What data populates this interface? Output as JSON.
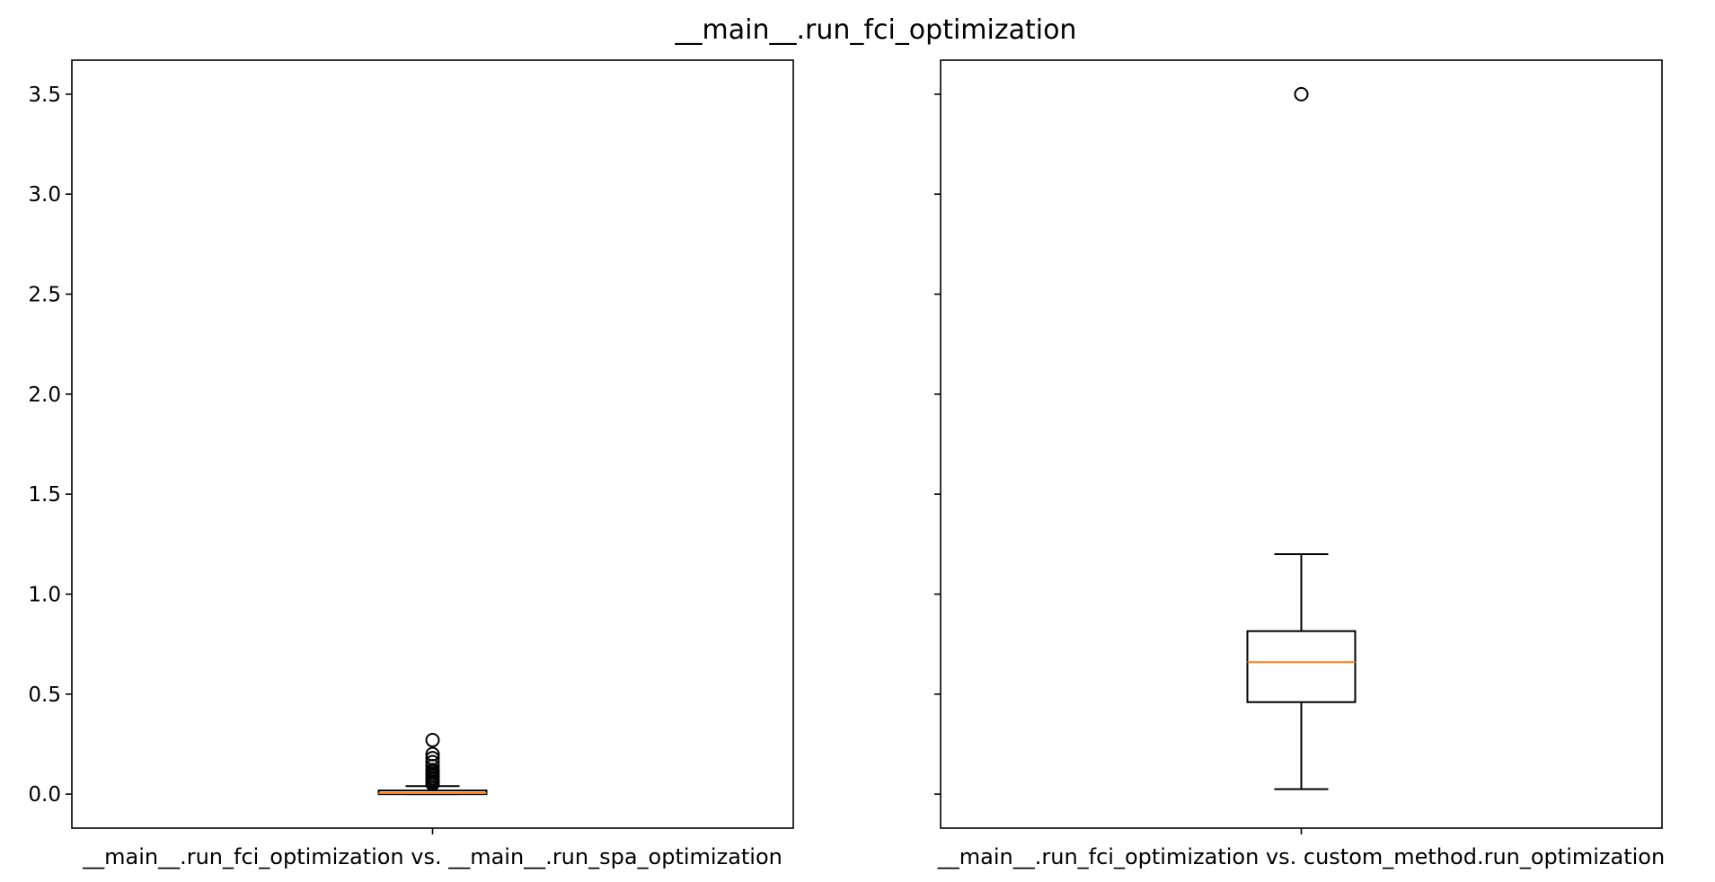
{
  "figure": {
    "title": "__main__.run_fci_optimization"
  },
  "colors": {
    "box": "#000000",
    "median": "#ff7f0e",
    "background": "#ffffff"
  },
  "chart_data": {
    "type": "boxplot",
    "ylim": [
      -0.17,
      3.67
    ],
    "yticks": [
      "0.0",
      "0.5",
      "1.0",
      "1.5",
      "2.0",
      "2.5",
      "3.0",
      "3.5"
    ],
    "shared_y": true,
    "grid": false,
    "panels": [
      {
        "category": "__main__.run_fci_optimization vs. __main__.run_spa_optimization",
        "q1": 0.0,
        "median": 0.005,
        "q3": 0.018,
        "whisker_low": 0.0,
        "whisker_high": 0.04,
        "outliers": [
          0.05,
          0.06,
          0.07,
          0.08,
          0.09,
          0.1,
          0.11,
          0.12,
          0.14,
          0.16,
          0.18,
          0.2,
          0.27
        ]
      },
      {
        "category": "__main__.run_fci_optimization vs. custom_method.run_optimization",
        "q1": 0.46,
        "median": 0.66,
        "q3": 0.815,
        "whisker_low": 0.025,
        "whisker_high": 1.2,
        "outliers": [
          3.5
        ]
      }
    ]
  }
}
